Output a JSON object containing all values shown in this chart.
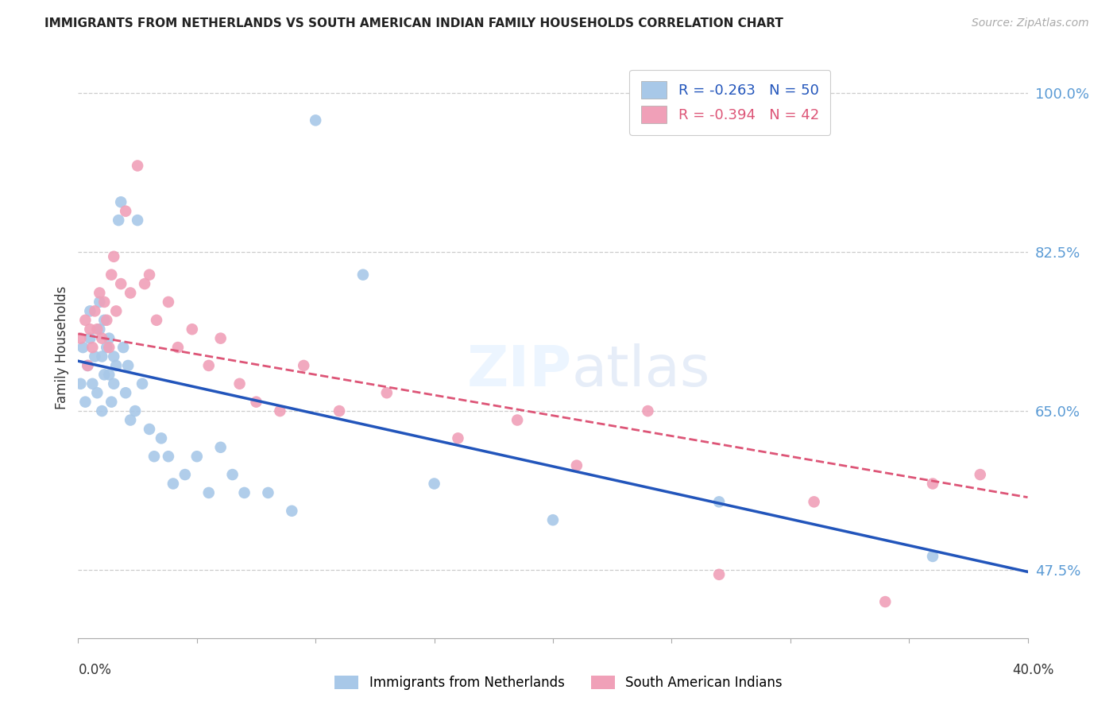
{
  "title": "IMMIGRANTS FROM NETHERLANDS VS SOUTH AMERICAN INDIAN FAMILY HOUSEHOLDS CORRELATION CHART",
  "source": "Source: ZipAtlas.com",
  "ylabel": "Family Households",
  "watermark_part1": "ZIP",
  "watermark_part2": "atlas",
  "right_yticks": [
    47.5,
    65.0,
    82.5,
    100.0
  ],
  "xlim": [
    0.0,
    0.4
  ],
  "ylim": [
    0.4,
    1.04
  ],
  "legend1_label": "Immigrants from Netherlands",
  "legend2_label": "South American Indians",
  "legend1_R": "R = -0.263",
  "legend1_N": "N = 50",
  "legend2_R": "R = -0.394",
  "legend2_N": "N = 42",
  "blue_color": "#a8c8e8",
  "pink_color": "#f0a0b8",
  "line_blue": "#2255bb",
  "line_pink": "#dd5577",
  "blue_points_x": [
    0.001,
    0.002,
    0.003,
    0.004,
    0.005,
    0.005,
    0.006,
    0.007,
    0.008,
    0.009,
    0.009,
    0.01,
    0.01,
    0.011,
    0.011,
    0.012,
    0.013,
    0.013,
    0.014,
    0.015,
    0.015,
    0.016,
    0.017,
    0.018,
    0.019,
    0.02,
    0.021,
    0.022,
    0.024,
    0.025,
    0.027,
    0.03,
    0.032,
    0.035,
    0.038,
    0.04,
    0.045,
    0.05,
    0.055,
    0.06,
    0.065,
    0.07,
    0.08,
    0.09,
    0.1,
    0.12,
    0.15,
    0.2,
    0.27,
    0.36
  ],
  "blue_points_y": [
    0.68,
    0.72,
    0.66,
    0.7,
    0.73,
    0.76,
    0.68,
    0.71,
    0.67,
    0.74,
    0.77,
    0.65,
    0.71,
    0.69,
    0.75,
    0.72,
    0.69,
    0.73,
    0.66,
    0.68,
    0.71,
    0.7,
    0.86,
    0.88,
    0.72,
    0.67,
    0.7,
    0.64,
    0.65,
    0.86,
    0.68,
    0.63,
    0.6,
    0.62,
    0.6,
    0.57,
    0.58,
    0.6,
    0.56,
    0.61,
    0.58,
    0.56,
    0.56,
    0.54,
    0.97,
    0.8,
    0.57,
    0.53,
    0.55,
    0.49
  ],
  "pink_points_x": [
    0.001,
    0.003,
    0.004,
    0.005,
    0.006,
    0.007,
    0.008,
    0.009,
    0.01,
    0.011,
    0.012,
    0.013,
    0.014,
    0.015,
    0.016,
    0.018,
    0.02,
    0.022,
    0.025,
    0.028,
    0.03,
    0.033,
    0.038,
    0.042,
    0.048,
    0.055,
    0.06,
    0.068,
    0.075,
    0.085,
    0.095,
    0.11,
    0.13,
    0.16,
    0.185,
    0.21,
    0.24,
    0.27,
    0.31,
    0.34,
    0.36,
    0.38
  ],
  "pink_points_y": [
    0.73,
    0.75,
    0.7,
    0.74,
    0.72,
    0.76,
    0.74,
    0.78,
    0.73,
    0.77,
    0.75,
    0.72,
    0.8,
    0.82,
    0.76,
    0.79,
    0.87,
    0.78,
    0.92,
    0.79,
    0.8,
    0.75,
    0.77,
    0.72,
    0.74,
    0.7,
    0.73,
    0.68,
    0.66,
    0.65,
    0.7,
    0.65,
    0.67,
    0.62,
    0.64,
    0.59,
    0.65,
    0.47,
    0.55,
    0.44,
    0.57,
    0.58
  ],
  "blue_line_x": [
    0.0,
    0.4
  ],
  "blue_line_y": [
    0.705,
    0.473
  ],
  "pink_line_x": [
    0.0,
    0.4
  ],
  "pink_line_y": [
    0.735,
    0.555
  ]
}
